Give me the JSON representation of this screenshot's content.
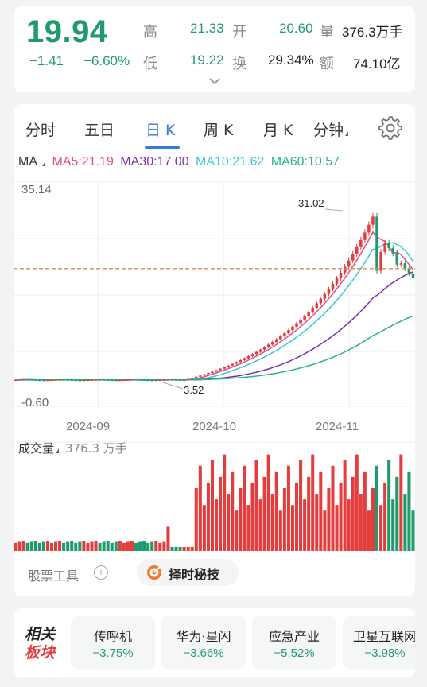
{
  "quote": {
    "price": "19.94",
    "change": "−1.41",
    "change_pct": "−6.60%",
    "colors": {
      "up": "#e33d3d",
      "down": "#1f9a6a"
    },
    "stats": [
      {
        "label": "高",
        "value": "21.33"
      },
      {
        "label": "开",
        "value": "20.60"
      },
      {
        "label": "量",
        "value": "376.3万手"
      },
      {
        "label": "低",
        "value": "19.22"
      },
      {
        "label": "换",
        "value": "29.34%"
      },
      {
        "label": "额",
        "value": "74.10亿"
      }
    ],
    "expand_icon": "chevron-down-icon"
  },
  "tabs": [
    {
      "label": "分时"
    },
    {
      "label": "五日"
    },
    {
      "label": "日 K",
      "active": true
    },
    {
      "label": "周 K"
    },
    {
      "label": "月 K"
    },
    {
      "label": "分钟"
    }
  ],
  "settings_icon": "gear-icon",
  "ma": {
    "label": "MA",
    "lines": [
      {
        "text": "MA5:21.19",
        "color": "#e54b8a"
      },
      {
        "text": "MA30:17.00",
        "color": "#7b2fb0"
      },
      {
        "text": "MA10:21.62",
        "color": "#3cc6d6"
      },
      {
        "text": "MA60:10.57",
        "color": "#29b383"
      }
    ]
  },
  "chart_data": {
    "type": "candlestick",
    "ylim": [
      -0.6,
      35.14
    ],
    "y_top_label": "35.14",
    "y_bottom_label": "-0.60",
    "max_label": "31.02",
    "min_label": "3.52",
    "x_ticks": [
      "2024-09",
      "2024-10",
      "2024-11"
    ],
    "reference_price": 21.35,
    "volume_label": "成交量",
    "volume_value": "376.3 万手"
  },
  "tools": {
    "label": "股票工具",
    "button": "择时秘技"
  },
  "related": {
    "title_1": "相关",
    "title_2": "板块",
    "sectors": [
      {
        "name": "传呼机",
        "pct": "−3.75%"
      },
      {
        "name": "华为·星闪",
        "pct": "−3.66%"
      },
      {
        "name": "应急产业",
        "pct": "−5.52%"
      },
      {
        "name": "卫星互联网",
        "pct": "−3.98%"
      }
    ]
  }
}
